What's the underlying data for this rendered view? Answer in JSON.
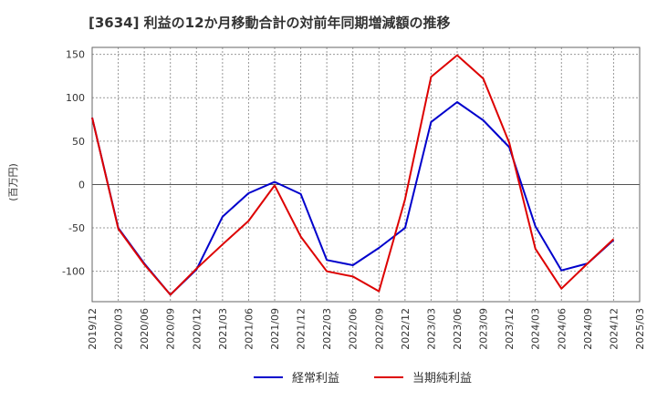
{
  "chart_data": {
    "type": "line",
    "title": "[3634]  利益の12か月移動合計の対前年同期増減額の推移",
    "ylabel": "(百万円)",
    "xlabel": "",
    "ylim": [
      -135,
      158
    ],
    "yticks": [
      150,
      100,
      50,
      0,
      -50,
      -100
    ],
    "categories": [
      "2019/12",
      "2020/03",
      "2020/06",
      "2020/09",
      "2020/12",
      "2021/03",
      "2021/06",
      "2021/09",
      "2021/12",
      "2022/03",
      "2022/06",
      "2022/09",
      "2022/12",
      "2023/03",
      "2023/06",
      "2023/09",
      "2023/12",
      "2024/03",
      "2024/06",
      "2024/09",
      "2024/12",
      "2025/03"
    ],
    "series": [
      {
        "name": "経常利益",
        "color": "#0000cc",
        "values": [
          77,
          -50,
          -91,
          -127,
          -98,
          -37,
          -10,
          3,
          -11,
          -87,
          -93,
          -73,
          -50,
          72,
          95,
          74,
          43,
          -48,
          -99,
          -91,
          -64,
          null
        ]
      },
      {
        "name": "当期純利益",
        "color": "#dd0000",
        "values": [
          77,
          -51,
          -92,
          -127,
          -97,
          -69,
          -42,
          -1,
          -60,
          -100,
          -106,
          -123,
          -17,
          124,
          149,
          122,
          48,
          -74,
          -120,
          -91,
          -63,
          null
        ]
      }
    ],
    "legend_position": "bottom-center",
    "grid": true
  }
}
